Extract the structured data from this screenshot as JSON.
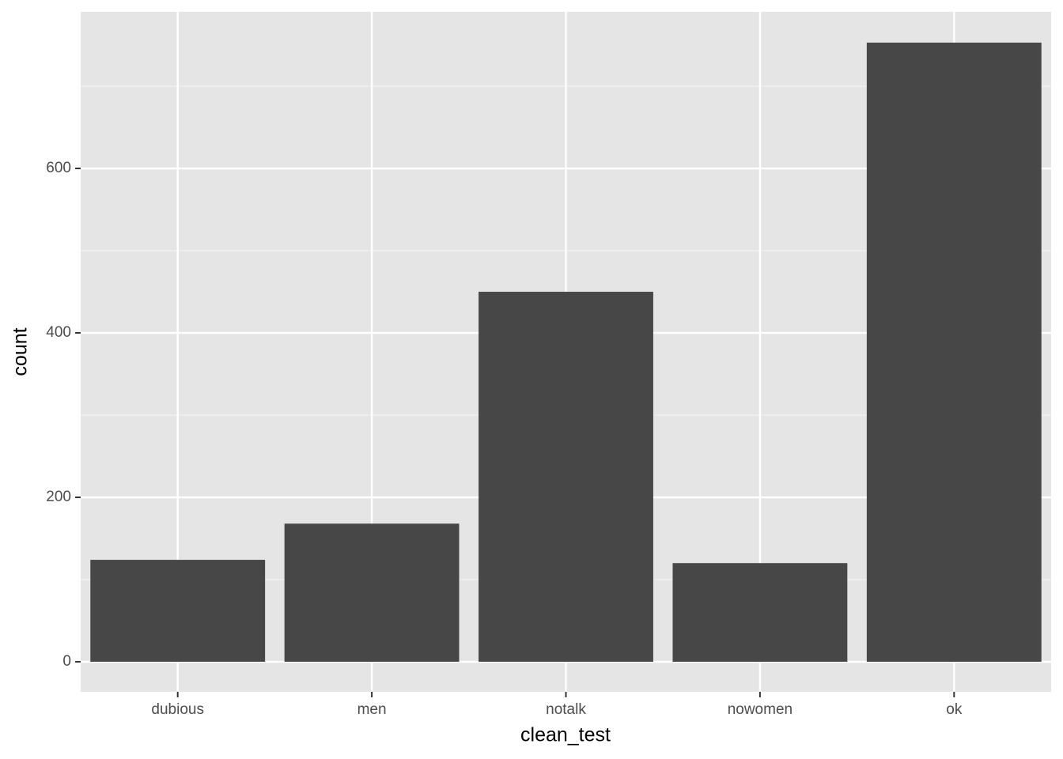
{
  "chart_data": {
    "type": "bar",
    "x_label": "clean_test",
    "y_label": "count",
    "categories": [
      "dubious",
      "men",
      "notalk",
      "nowomen",
      "ok"
    ],
    "values": [
      124,
      168,
      450,
      120,
      753
    ],
    "color": "#474747",
    "ylim": [
      -36.5,
      790.4
    ],
    "yticks": [
      0,
      200,
      400,
      600
    ],
    "grid": true
  }
}
